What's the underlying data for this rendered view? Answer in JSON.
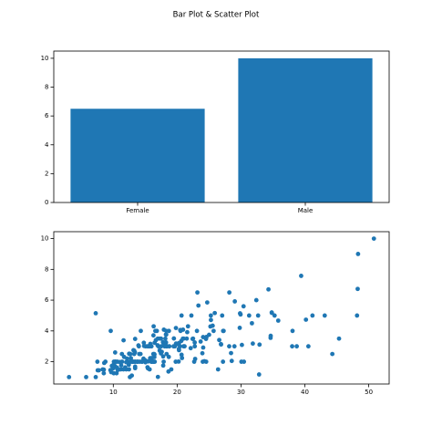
{
  "title": "Bar Plot & Scatter Plot",
  "chart_data": [
    {
      "type": "bar",
      "categories": [
        "Female",
        "Male"
      ],
      "values": [
        6.5,
        10
      ],
      "color": "#1f77b4",
      "ylim": [
        0,
        10.5
      ],
      "yticks": [
        0,
        2,
        4,
        6,
        8,
        10
      ]
    },
    {
      "type": "scatter",
      "color": "#1f77b4",
      "xlim": [
        0.68,
        53.2
      ],
      "xticks": [
        10,
        20,
        30,
        40,
        50
      ],
      "ylim": [
        0.55,
        10.45
      ],
      "yticks": [
        2,
        4,
        6,
        8,
        10
      ],
      "x": [
        16.99,
        10.34,
        21.01,
        23.68,
        24.59,
        25.29,
        8.77,
        26.88,
        15.04,
        14.78,
        10.27,
        35.26,
        15.42,
        18.43,
        14.83,
        21.58,
        10.33,
        16.29,
        16.97,
        20.65,
        17.92,
        20.29,
        15.77,
        39.42,
        19.82,
        17.81,
        13.37,
        12.69,
        21.7,
        19.65,
        9.55,
        18.35,
        15.06,
        20.69,
        17.78,
        24.06,
        16.31,
        16.93,
        18.69,
        31.27,
        16.04,
        17.46,
        13.94,
        9.68,
        30.4,
        18.29,
        22.23,
        32.4,
        28.55,
        18.04,
        12.54,
        10.29,
        34.81,
        9.94,
        25.56,
        19.49,
        38.01,
        26.41,
        11.24,
        48.27,
        20.29,
        13.81,
        11.02,
        18.29,
        17.59,
        20.08,
        16.45,
        3.07,
        20.23,
        15.01,
        12.02,
        17.07,
        26.86,
        25.28,
        14.73,
        10.51,
        17.92,
        27.2,
        22.76,
        17.29,
        19.44,
        16.66,
        10.07,
        32.68,
        15.98,
        34.83,
        13.03,
        18.28,
        24.71,
        21.16,
        28.97,
        22.49,
        5.75,
        16.32,
        22.75,
        40.17,
        27.28,
        12.03,
        21.01,
        12.46,
        11.35,
        15.38,
        44.3,
        22.42,
        20.92,
        15.36,
        20.49,
        25.21,
        18.24,
        14.31,
        14.0,
        7.25,
        38.07,
        23.95,
        25.71,
        17.31,
        29.93,
        10.65,
        12.43,
        24.08,
        11.69,
        13.42,
        14.26,
        15.95,
        12.48,
        29.8,
        8.52,
        14.52,
        11.38,
        22.82,
        19.08,
        20.27,
        11.17,
        12.26,
        18.26,
        8.51,
        10.33,
        14.15,
        16.0,
        13.16,
        17.47,
        34.3,
        41.19,
        27.05,
        16.43,
        8.35,
        18.64,
        11.87,
        9.78,
        7.51,
        14.07,
        13.13,
        17.26,
        24.55,
        19.77,
        29.85,
        48.17,
        25.0,
        13.39,
        16.49,
        21.5,
        12.66,
        16.21,
        13.81,
        17.51,
        24.52,
        20.76,
        31.71,
        10.59,
        10.63,
        50.81,
        15.81,
        7.25,
        31.85,
        16.82,
        32.9,
        17.89,
        14.48,
        9.6,
        34.63,
        34.65,
        23.33,
        45.35,
        23.17,
        40.55,
        20.69,
        20.9,
        30.46,
        18.15,
        23.1,
        15.69,
        19.81,
        28.44,
        15.48,
        16.58,
        7.56,
        10.34,
        43.11,
        13.0,
        13.51,
        18.71,
        12.74,
        13.0,
        16.4,
        20.53,
        16.47,
        26.59,
        38.73,
        24.27,
        12.76,
        30.06,
        25.89,
        48.33,
        13.27,
        28.17,
        12.9,
        28.15,
        11.59,
        7.74,
        30.14,
        12.16,
        13.42,
        8.58,
        15.98,
        13.42,
        16.27,
        10.09,
        20.45,
        13.28,
        22.12,
        24.01,
        15.69,
        11.61,
        10.77,
        15.53,
        10.07,
        12.6,
        32.83,
        35.83,
        29.03,
        27.18,
        22.67,
        17.82,
        18.78
      ],
      "y": [
        1.01,
        1.66,
        3.5,
        3.31,
        3.61,
        4.71,
        2.0,
        3.12,
        1.96,
        3.23,
        1.71,
        5.0,
        1.57,
        3.0,
        3.02,
        3.92,
        1.67,
        3.71,
        3.5,
        3.35,
        4.08,
        2.75,
        2.23,
        7.58,
        3.18,
        2.34,
        2.0,
        2.0,
        4.3,
        3.0,
        1.45,
        2.5,
        3.0,
        2.45,
        3.27,
        3.6,
        2.0,
        3.07,
        2.31,
        5.0,
        2.24,
        2.54,
        3.06,
        1.32,
        5.6,
        3.0,
        5.0,
        6.0,
        2.05,
        3.0,
        2.5,
        2.6,
        5.2,
        1.56,
        4.34,
        3.51,
        3.0,
        1.5,
        1.76,
        6.73,
        3.21,
        2.0,
        1.98,
        3.76,
        2.64,
        3.15,
        2.47,
        1.0,
        2.01,
        2.09,
        1.97,
        3.0,
        3.14,
        5.0,
        2.2,
        1.25,
        3.08,
        4.0,
        3.0,
        2.71,
        3.0,
        3.4,
        1.83,
        5.0,
        2.03,
        5.17,
        2.0,
        4.0,
        5.85,
        3.0,
        3.0,
        3.5,
        1.0,
        4.3,
        3.25,
        4.73,
        4.0,
        1.5,
        3.0,
        1.5,
        2.5,
        3.0,
        2.5,
        3.48,
        4.08,
        1.64,
        4.06,
        4.29,
        3.76,
        4.0,
        3.0,
        1.0,
        4.0,
        2.55,
        4.0,
        3.5,
        5.07,
        1.5,
        1.8,
        2.92,
        2.31,
        1.68,
        2.5,
        2.0,
        2.52,
        4.2,
        1.48,
        2.0,
        2.0,
        2.18,
        1.5,
        2.83,
        1.5,
        2.0,
        3.25,
        1.25,
        2.0,
        2.0,
        2.0,
        2.75,
        3.5,
        6.7,
        5.0,
        5.0,
        2.3,
        1.5,
        1.36,
        1.63,
        1.73,
        2.0,
        2.5,
        2.0,
        2.74,
        2.0,
        2.0,
        5.14,
        5.0,
        3.75,
        2.61,
        2.0,
        3.5,
        2.5,
        2.0,
        2.0,
        3.0,
        3.48,
        2.24,
        4.5,
        1.61,
        2.0,
        10.0,
        3.16,
        5.15,
        3.18,
        4.0,
        3.11,
        2.0,
        2.0,
        4.0,
        3.55,
        3.68,
        5.65,
        3.5,
        6.5,
        3.0,
        5.0,
        3.5,
        2.0,
        3.5,
        4.0,
        1.5,
        4.19,
        2.56,
        2.02,
        4.0,
        1.44,
        2.0,
        5.0,
        2.0,
        2.0,
        4.0,
        2.01,
        2.0,
        2.5,
        4.0,
        3.23,
        3.41,
        3.0,
        2.03,
        2.23,
        2.0,
        5.16,
        9.0,
        2.5,
        6.5,
        1.1,
        3.0,
        1.5,
        1.44,
        3.09,
        2.2,
        3.48,
        1.92,
        3.0,
        1.58,
        2.5,
        2.0,
        3.0,
        2.72,
        2.88,
        2.0,
        3.0,
        3.39,
        1.47,
        3.0,
        1.25,
        1.0,
        1.17,
        4.67,
        5.92,
        2.0,
        2.0,
        1.75,
        3.0
      ]
    }
  ]
}
